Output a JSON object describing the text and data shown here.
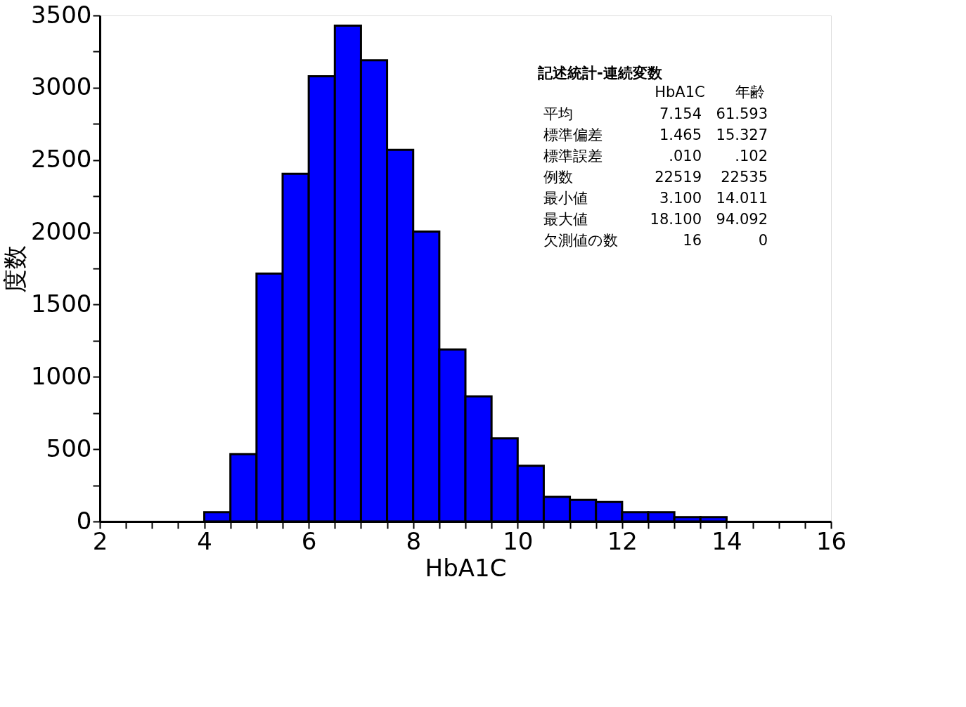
{
  "chart_data": {
    "type": "histogram",
    "xlabel": "HbA1C",
    "ylabel": "度数",
    "bins": [
      4,
      4.5,
      5,
      5.5,
      6,
      6.5,
      7,
      7.5,
      8,
      8.5,
      9,
      9.5,
      10,
      10.5,
      11,
      11.5,
      12,
      12.5,
      13,
      13.5,
      14
    ],
    "values": [
      65,
      465,
      1715,
      2405,
      3080,
      3430,
      3190,
      2570,
      2005,
      1190,
      865,
      575,
      385,
      170,
      150,
      135,
      65,
      65,
      30,
      30
    ],
    "color": "#0000ff",
    "xlim": [
      2,
      16
    ],
    "xticks": [
      2,
      {
        "value": 2.5,
        "label": null
      },
      {
        "value": 3,
        "label": null
      },
      {
        "value": 3.5,
        "label": null
      },
      4,
      {
        "value": 4.5,
        "label": null
      },
      {
        "value": 5,
        "label": null
      },
      {
        "value": 5.5,
        "label": null
      },
      6,
      {
        "value": 6.5,
        "label": null
      },
      {
        "value": 7,
        "label": null
      },
      {
        "value": 7.5,
        "label": null
      },
      8,
      {
        "value": 8.5,
        "label": null
      },
      {
        "value": 9,
        "label": null
      },
      {
        "value": 9.5,
        "label": null
      },
      10,
      {
        "value": 10.5,
        "label": null
      },
      {
        "value": 11,
        "label": null
      },
      {
        "value": 11.5,
        "label": null
      },
      12,
      {
        "value": 12.5,
        "label": null
      },
      {
        "value": 13,
        "label": null
      },
      {
        "value": 13.5,
        "label": null
      },
      14,
      {
        "value": 14.5,
        "label": null
      },
      {
        "value": 15,
        "label": null
      },
      {
        "value": 15.5,
        "label": null
      },
      16
    ],
    "ylim": [
      0,
      3500
    ],
    "yticks": [
      0,
      {
        "value": 250,
        "label": null
      },
      500,
      {
        "value": 750,
        "label": null
      },
      1000,
      {
        "value": 1250,
        "label": null
      },
      1500,
      {
        "value": 1750,
        "label": null
      },
      2000,
      {
        "value": 2250,
        "label": null
      },
      2500,
      {
        "value": 2750,
        "label": null
      },
      3000,
      {
        "value": 3250,
        "label": null
      },
      3500
    ],
    "grid": false,
    "annotations": [
      "記述統計-連続変数",
      "HbA1C",
      "年齢",
      "平均",
      "7.154",
      "61.593",
      "標準偏差",
      "1.465",
      "15.327",
      "標準誤差",
      ".010",
      ".102",
      "例数",
      "22519",
      "22535",
      "最小値",
      "3.100",
      "14.011",
      "最大値",
      "18.100",
      "94.092",
      "欠測値の数",
      "16",
      "0"
    ]
  }
}
